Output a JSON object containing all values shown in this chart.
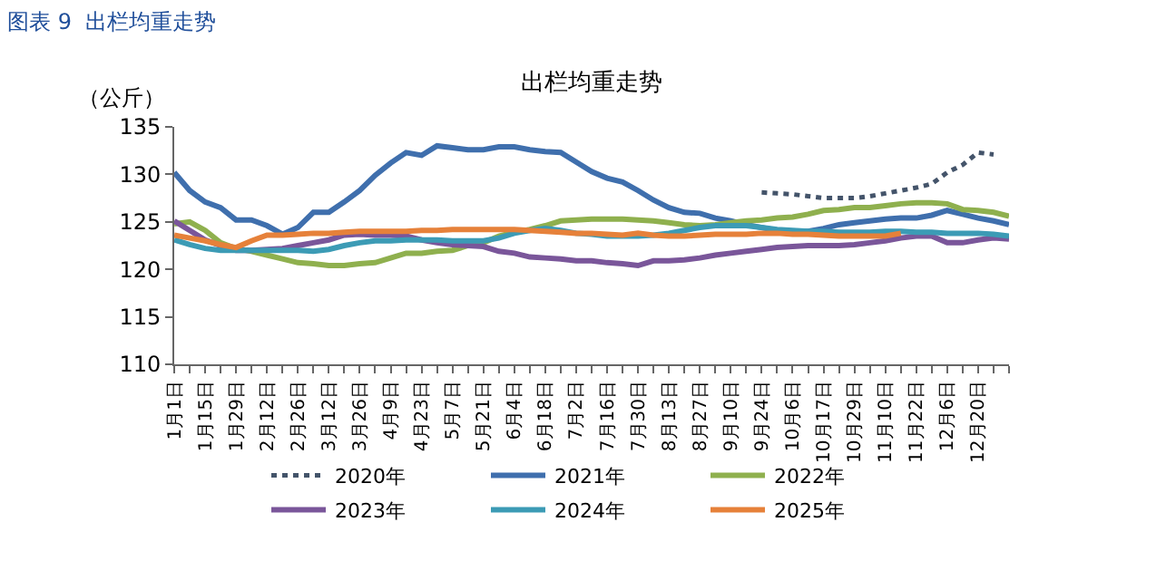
{
  "chart_data": {
    "type": "line",
    "title": "出栏均重走势",
    "ylabel": "（公斤）",
    "annotations": [
      "图表 9  出栏均重走势"
    ],
    "categories": [
      "1月1日",
      null,
      "1月15日",
      null,
      "1月29日",
      null,
      "2月12日",
      null,
      "2月26日",
      null,
      "3月12日",
      null,
      "3月26日",
      null,
      "4月9日",
      null,
      "4月23日",
      null,
      "5月7日",
      null,
      "5月21日",
      null,
      "6月4日",
      null,
      "6月18日",
      null,
      "7月2日",
      null,
      "7月16日",
      null,
      "7月30日",
      null,
      "8月13日",
      null,
      "8月27日",
      null,
      "9月10日",
      null,
      "9月24日",
      null,
      "10月6日",
      null,
      "10月17日",
      null,
      "10月29日",
      null,
      "11月10日",
      null,
      "11月22日",
      null,
      "12月6日",
      null,
      "12月20日",
      null,
      null
    ],
    "ylim": [
      110,
      135
    ],
    "yticks": [
      110,
      115,
      120,
      125,
      130,
      135
    ],
    "grid": false,
    "legend": "bottom",
    "marker": "none",
    "line_style": "solid",
    "series": [
      {
        "name": "2020年",
        "color": "#44546a",
        "line_style": "dotted",
        "values": [
          null,
          null,
          null,
          null,
          null,
          null,
          null,
          null,
          null,
          null,
          null,
          null,
          null,
          null,
          null,
          null,
          null,
          null,
          null,
          null,
          null,
          null,
          null,
          null,
          null,
          null,
          null,
          null,
          null,
          null,
          null,
          null,
          null,
          null,
          null,
          null,
          null,
          null,
          128.1,
          128.0,
          127.9,
          127.7,
          127.5,
          127.5,
          127.5,
          127.7,
          128.0,
          128.3,
          128.6,
          129.0,
          130.2,
          131.0,
          132.3,
          132.1,
          null
        ]
      },
      {
        "name": "2021年",
        "color": "#3f6fad",
        "values": [
          130.2,
          128.3,
          127.1,
          126.5,
          125.2,
          125.2,
          124.6,
          123.7,
          124.4,
          126.0,
          126.0,
          127.1,
          128.3,
          129.9,
          131.2,
          132.3,
          132.0,
          133.0,
          132.8,
          132.6,
          132.6,
          132.9,
          132.9,
          132.6,
          132.4,
          132.3,
          131.3,
          130.3,
          129.6,
          129.2,
          128.3,
          127.3,
          126.5,
          126.0,
          125.9,
          125.4,
          125.1,
          124.7,
          124.4,
          124.1,
          124.0,
          124.0,
          124.3,
          124.7,
          124.9,
          125.1,
          125.3,
          125.4,
          125.4,
          125.7,
          126.2,
          125.8,
          125.4,
          125.1,
          124.7
        ]
      },
      {
        "name": "2022年",
        "color": "#8fb04e",
        "values": [
          124.8,
          125.0,
          124.1,
          122.8,
          122.2,
          121.9,
          121.5,
          121.1,
          120.7,
          120.6,
          120.4,
          120.4,
          120.6,
          120.7,
          121.2,
          121.7,
          121.7,
          121.9,
          122.0,
          122.5,
          122.8,
          123.5,
          123.9,
          124.2,
          124.6,
          125.1,
          125.2,
          125.3,
          125.3,
          125.3,
          125.2,
          125.1,
          124.9,
          124.7,
          124.6,
          124.7,
          124.9,
          125.1,
          125.2,
          125.4,
          125.5,
          125.8,
          126.2,
          126.3,
          126.5,
          126.5,
          126.7,
          126.9,
          127.0,
          127.0,
          126.9,
          126.3,
          126.2,
          126.0,
          125.6
        ]
      },
      {
        "name": "2023年",
        "color": "#7a569a",
        "values": [
          125.1,
          124.1,
          123.1,
          122.5,
          122.0,
          122.0,
          122.1,
          122.2,
          122.5,
          122.8,
          123.1,
          123.6,
          123.7,
          123.6,
          123.6,
          123.5,
          123.1,
          122.8,
          122.6,
          122.5,
          122.4,
          121.9,
          121.7,
          121.3,
          121.2,
          121.1,
          120.9,
          120.9,
          120.7,
          120.6,
          120.4,
          120.9,
          120.9,
          121.0,
          121.2,
          121.5,
          121.7,
          121.9,
          122.1,
          122.3,
          122.4,
          122.5,
          122.5,
          122.5,
          122.6,
          122.8,
          123.0,
          123.3,
          123.5,
          123.5,
          122.8,
          122.8,
          123.1,
          123.3,
          123.2
        ]
      },
      {
        "name": "2024年",
        "color": "#3c9bb5",
        "values": [
          123.1,
          122.6,
          122.2,
          122.0,
          122.0,
          122.0,
          122.0,
          122.0,
          122.0,
          121.9,
          122.1,
          122.5,
          122.8,
          123.0,
          123.0,
          123.1,
          123.1,
          123.1,
          123.0,
          123.0,
          123.0,
          123.3,
          123.8,
          124.1,
          124.3,
          124.1,
          123.8,
          123.7,
          123.5,
          123.5,
          123.5,
          123.6,
          123.8,
          124.1,
          124.4,
          124.6,
          124.6,
          124.6,
          124.4,
          124.2,
          124.1,
          124.0,
          124.0,
          123.9,
          123.9,
          123.9,
          124.0,
          124.0,
          123.9,
          123.9,
          123.8,
          123.8,
          123.8,
          123.7,
          123.5
        ]
      },
      {
        "name": "2025年",
        "color": "#e6813a",
        "values": [
          123.6,
          123.3,
          123.0,
          122.6,
          122.3,
          123.0,
          123.6,
          123.6,
          123.7,
          123.8,
          123.8,
          123.9,
          124.0,
          124.0,
          124.0,
          124.0,
          124.1,
          124.1,
          124.2,
          124.2,
          124.2,
          124.2,
          124.2,
          124.1,
          124.0,
          123.9,
          123.8,
          123.8,
          123.7,
          123.6,
          123.8,
          123.6,
          123.5,
          123.5,
          123.6,
          123.7,
          123.7,
          123.7,
          123.8,
          123.8,
          123.7,
          123.7,
          123.6,
          123.5,
          123.5,
          123.5,
          123.5,
          123.8,
          null,
          null,
          null,
          null,
          null,
          null,
          null
        ]
      }
    ]
  }
}
